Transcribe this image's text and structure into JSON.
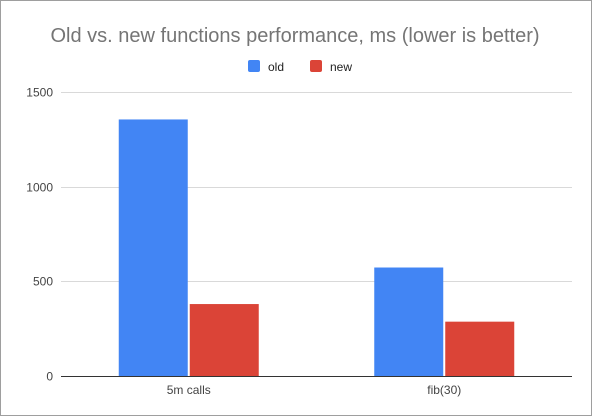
{
  "chart_data": {
    "type": "bar",
    "title": "Old vs. new functions performance, ms (lower is better)",
    "categories": [
      "5m calls",
      "fib(30)"
    ],
    "series": [
      {
        "name": "old",
        "color": "#4285f4",
        "values": [
          1355,
          573
        ]
      },
      {
        "name": "new",
        "color": "#db4437",
        "values": [
          380,
          287
        ]
      }
    ],
    "xlabel": "",
    "ylabel": "",
    "ylim": [
      0,
      1500
    ],
    "yticks": [
      0,
      500,
      1000,
      1500
    ],
    "grid": true,
    "legend_position": "top-center"
  }
}
